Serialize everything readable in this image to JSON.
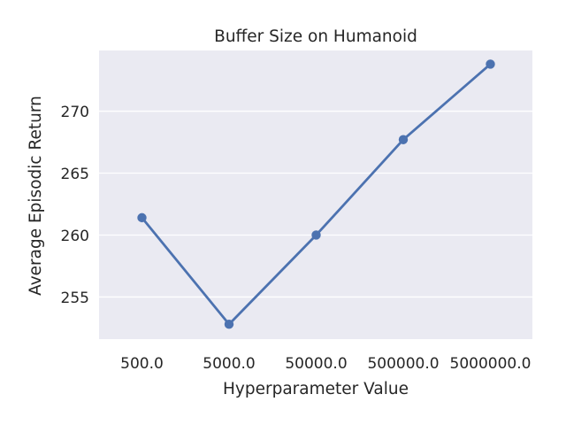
{
  "chart_data": {
    "type": "line",
    "title": "Buffer Size on Humanoid",
    "xlabel": "Hyperparameter Value",
    "ylabel": "Average Episodic Return",
    "categories": [
      "500.0",
      "5000.0",
      "50000.0",
      "500000.0",
      "5000000.0"
    ],
    "series": [
      {
        "values": [
          261.4,
          252.8,
          260.0,
          267.7,
          273.8
        ]
      }
    ],
    "ylim": [
      251.6,
      274.9
    ],
    "yticks": [
      255,
      260,
      265,
      270
    ],
    "grid": true,
    "legend": "none",
    "colors": {
      "line": "#4c72b0",
      "plot_bg": "#eaeaf2",
      "grid": "#ffffff"
    }
  }
}
